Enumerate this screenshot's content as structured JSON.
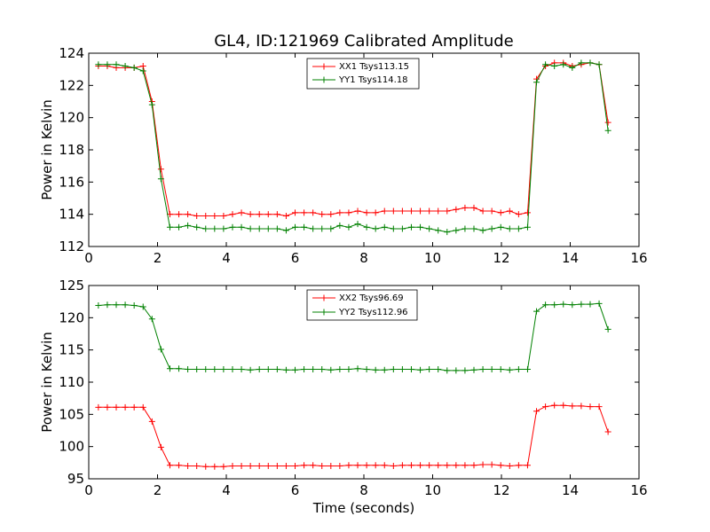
{
  "chart_data": [
    {
      "type": "line",
      "title": "GL4, ID:121969 Calibrated Amplitude",
      "xlabel": "",
      "ylabel": "Power in Kelvin",
      "xlim": [
        0,
        16
      ],
      "ylim": [
        112,
        124
      ],
      "xticks": [
        0,
        2,
        4,
        6,
        8,
        10,
        12,
        14,
        16
      ],
      "yticks": [
        112,
        114,
        116,
        118,
        120,
        122,
        124
      ],
      "xtick_labels": [
        "0",
        "2",
        "4",
        "6",
        "8",
        "10",
        "12",
        "14",
        "16"
      ],
      "ytick_labels": [
        "112",
        "114",
        "116",
        "118",
        "120",
        "122",
        "124"
      ],
      "legend_position": "top-center",
      "x": [
        0.28,
        0.54,
        0.8,
        1.06,
        1.32,
        1.58,
        1.84,
        2.1,
        2.36,
        2.62,
        2.88,
        3.14,
        3.4,
        3.66,
        3.92,
        4.18,
        4.44,
        4.7,
        4.96,
        5.22,
        5.48,
        5.74,
        6.0,
        6.26,
        6.52,
        6.78,
        7.04,
        7.3,
        7.56,
        7.82,
        8.08,
        8.34,
        8.6,
        8.86,
        9.12,
        9.38,
        9.64,
        9.9,
        10.16,
        10.42,
        10.68,
        10.94,
        11.2,
        11.46,
        11.72,
        11.98,
        12.24,
        12.5,
        12.76,
        13.02,
        13.28,
        13.54,
        13.8,
        14.06,
        14.32,
        14.58,
        14.84,
        15.1
      ],
      "series": [
        {
          "name": "XX1 Tsys113.15",
          "color": "#ff0000",
          "values": [
            123.2,
            123.2,
            123.1,
            123.1,
            123.1,
            123.2,
            121.0,
            116.8,
            114.0,
            114.0,
            114.0,
            113.9,
            113.9,
            113.9,
            113.9,
            114.0,
            114.1,
            114.0,
            114.0,
            114.0,
            114.0,
            113.9,
            114.1,
            114.1,
            114.1,
            114.0,
            114.0,
            114.1,
            114.1,
            114.2,
            114.1,
            114.1,
            114.2,
            114.2,
            114.2,
            114.2,
            114.2,
            114.2,
            114.2,
            114.2,
            114.3,
            114.4,
            114.4,
            114.2,
            114.2,
            114.1,
            114.2,
            114.0,
            114.1,
            122.4,
            123.2,
            123.4,
            123.4,
            123.2,
            123.3,
            123.4,
            123.3,
            119.7
          ]
        },
        {
          "name": "YY1 Tsys114.18",
          "color": "#008000",
          "values": [
            123.3,
            123.3,
            123.3,
            123.2,
            123.1,
            122.9,
            120.8,
            116.2,
            113.2,
            113.2,
            113.3,
            113.2,
            113.1,
            113.1,
            113.1,
            113.2,
            113.2,
            113.1,
            113.1,
            113.1,
            113.1,
            113.0,
            113.2,
            113.2,
            113.1,
            113.1,
            113.1,
            113.3,
            113.2,
            113.4,
            113.2,
            113.1,
            113.2,
            113.1,
            113.1,
            113.2,
            113.2,
            113.1,
            113.0,
            112.9,
            113.0,
            113.1,
            113.1,
            113.0,
            113.1,
            113.2,
            113.1,
            113.1,
            113.2,
            122.2,
            123.3,
            123.2,
            123.3,
            123.1,
            123.4,
            123.4,
            123.3,
            119.2
          ]
        }
      ]
    },
    {
      "type": "line",
      "title": "",
      "xlabel": "Time (seconds)",
      "ylabel": "Power in Kelvin",
      "xlim": [
        0,
        16
      ],
      "ylim": [
        95,
        125
      ],
      "xticks": [
        0,
        2,
        4,
        6,
        8,
        10,
        12,
        14,
        16
      ],
      "yticks": [
        95,
        100,
        105,
        110,
        115,
        120,
        125
      ],
      "xtick_labels": [
        "0",
        "2",
        "4",
        "6",
        "8",
        "10",
        "12",
        "14",
        "16"
      ],
      "ytick_labels": [
        "95",
        "100",
        "105",
        "110",
        "115",
        "120",
        "125"
      ],
      "legend_position": "top-center",
      "x": [
        0.28,
        0.54,
        0.8,
        1.06,
        1.32,
        1.58,
        1.84,
        2.1,
        2.36,
        2.62,
        2.88,
        3.14,
        3.4,
        3.66,
        3.92,
        4.18,
        4.44,
        4.7,
        4.96,
        5.22,
        5.48,
        5.74,
        6.0,
        6.26,
        6.52,
        6.78,
        7.04,
        7.3,
        7.56,
        7.82,
        8.08,
        8.34,
        8.6,
        8.86,
        9.12,
        9.38,
        9.64,
        9.9,
        10.16,
        10.42,
        10.68,
        10.94,
        11.2,
        11.46,
        11.72,
        11.98,
        12.24,
        12.5,
        12.76,
        13.02,
        13.28,
        13.54,
        13.8,
        14.06,
        14.32,
        14.58,
        14.84,
        15.1
      ],
      "series": [
        {
          "name": "XX2 Tsys96.69",
          "color": "#ff0000",
          "values": [
            106.1,
            106.1,
            106.1,
            106.1,
            106.1,
            106.1,
            103.9,
            99.9,
            97.1,
            97.1,
            97.0,
            97.0,
            96.9,
            96.9,
            96.9,
            97.0,
            97.0,
            97.0,
            97.0,
            97.0,
            97.0,
            97.0,
            97.0,
            97.1,
            97.1,
            97.0,
            97.0,
            97.0,
            97.1,
            97.1,
            97.1,
            97.1,
            97.1,
            97.0,
            97.1,
            97.1,
            97.1,
            97.1,
            97.1,
            97.1,
            97.1,
            97.1,
            97.1,
            97.2,
            97.2,
            97.1,
            97.0,
            97.1,
            97.1,
            105.5,
            106.2,
            106.4,
            106.4,
            106.3,
            106.3,
            106.2,
            106.2,
            102.3
          ]
        },
        {
          "name": "YY2 Tsys112.96",
          "color": "#008000",
          "values": [
            121.9,
            122.0,
            122.0,
            122.0,
            121.9,
            121.7,
            119.8,
            115.1,
            112.1,
            112.1,
            112.0,
            112.0,
            112.0,
            112.0,
            112.0,
            112.0,
            112.0,
            111.9,
            112.0,
            112.0,
            112.0,
            111.9,
            111.9,
            112.0,
            112.0,
            112.0,
            111.9,
            112.0,
            112.0,
            112.1,
            112.0,
            111.9,
            111.9,
            112.0,
            112.0,
            112.0,
            111.9,
            112.0,
            112.0,
            111.8,
            111.8,
            111.8,
            111.9,
            112.0,
            112.0,
            112.0,
            111.9,
            112.0,
            112.0,
            121.0,
            122.0,
            122.0,
            122.1,
            122.0,
            122.1,
            122.1,
            122.2,
            118.2
          ]
        }
      ]
    }
  ]
}
